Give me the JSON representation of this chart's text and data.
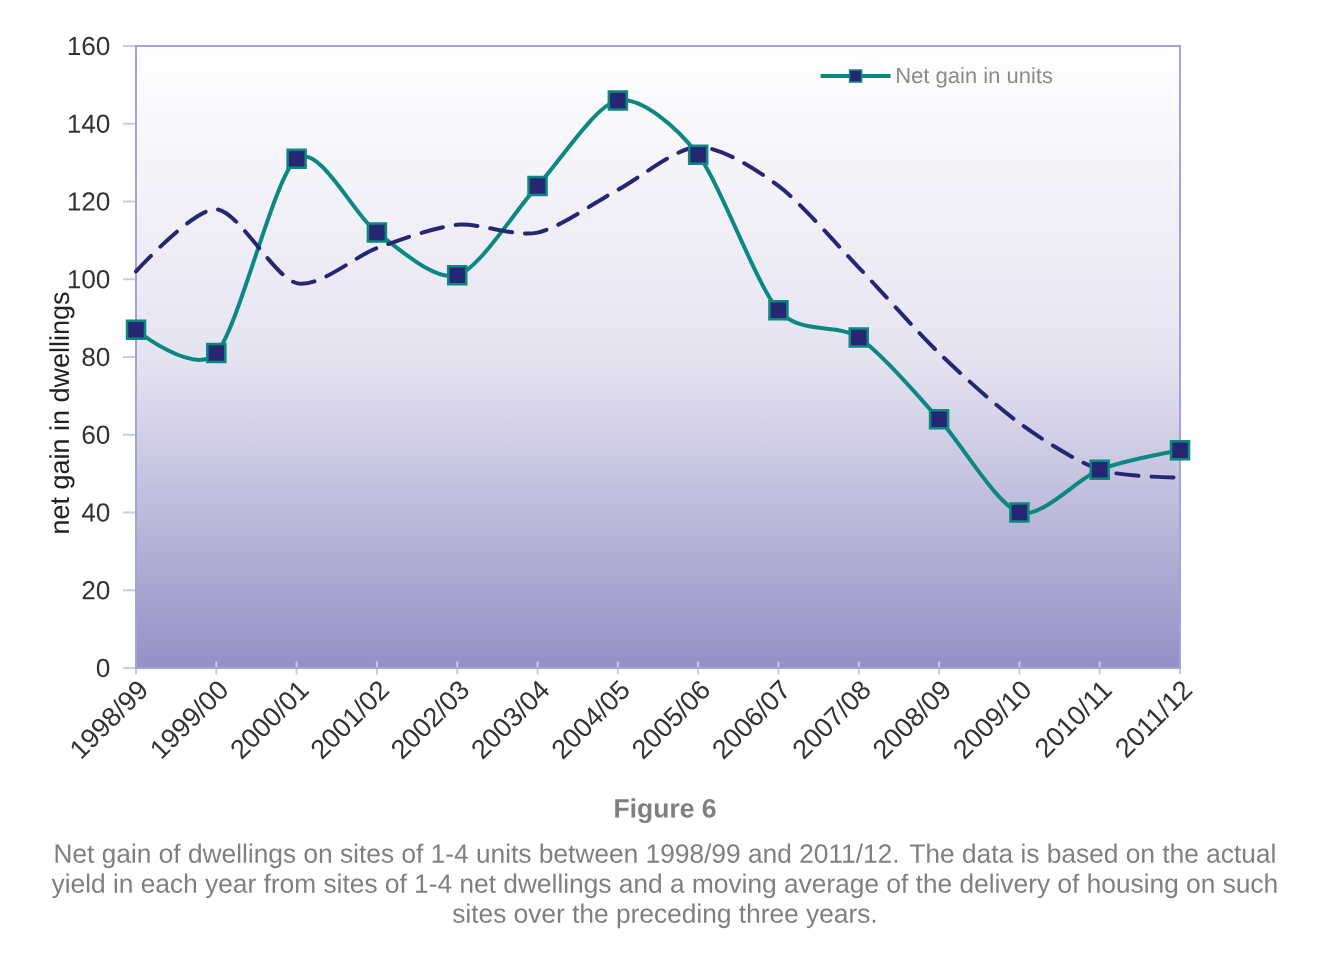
{
  "chart_data": {
    "type": "line",
    "categories": [
      "1998/99",
      "1999/00",
      "2000/01",
      "2001/02",
      "2002/03",
      "2003/04",
      "2004/05",
      "2005/06",
      "2006/07",
      "2007/08",
      "2008/09",
      "2009/10",
      "2010/11",
      "2011/12"
    ],
    "ylabel": "net gain in dwellings",
    "ylim": [
      0,
      160
    ],
    "yticks": [
      0,
      20,
      40,
      60,
      80,
      100,
      120,
      140,
      160
    ],
    "series": [
      {
        "name": "Net gain in units",
        "color": "#0b8880",
        "marker": "square",
        "line_style": "solid",
        "colors": [
          "#262673",
          "#262673",
          "#262673",
          "#262673",
          "#262673",
          "#262673",
          "#262673",
          "#262673",
          "#262673",
          "#262673",
          "#262673",
          "#262673",
          "#262673",
          "#262673"
        ],
        "values": [
          87,
          81,
          131,
          112,
          101,
          124,
          146,
          132,
          92,
          85,
          64,
          40,
          51,
          56
        ]
      },
      {
        "color": "#262673",
        "marker": "none",
        "line_style": "dashed",
        "values": [
          102,
          118,
          99,
          108,
          114,
          112,
          123,
          134,
          124,
          103,
          81,
          63,
          51,
          49
        ]
      }
    ],
    "legend": "top right",
    "annotations": [
      "Figure 6",
      "Net gain of dwellings on sites of 1-4 units between 1998/99 and 2011/12. The data is based on the actual yield in each year from sites of 1-4 net dwellings and a moving average of the delivery of housing on such sites over the preceding three years."
    ]
  }
}
